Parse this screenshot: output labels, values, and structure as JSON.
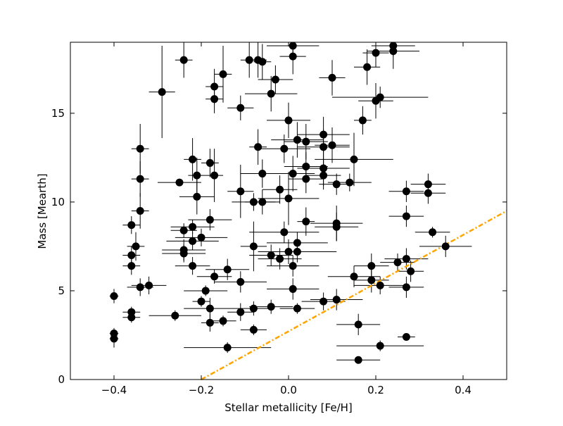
{
  "chart_data": {
    "type": "scatter",
    "title": "",
    "xlabel": "Stellar metallicity [Fe/H]",
    "ylabel": "Mass [Mearth]",
    "xlim": [
      -0.5,
      0.5
    ],
    "ylim": [
      0,
      19
    ],
    "xticks": [
      -0.4,
      -0.2,
      0.0,
      0.2,
      0.4
    ],
    "xtick_labels": [
      "−0.4",
      "−0.2",
      "0.0",
      "0.2",
      "0.4"
    ],
    "yticks": [
      0,
      5,
      10,
      15
    ],
    "ytick_labels": [
      "0",
      "5",
      "10",
      "15"
    ],
    "grid": false,
    "legend": "none",
    "colors": {
      "points": "#000000",
      "errorbars": "#000000",
      "trend": "#ffa500",
      "axes": "#000000"
    },
    "series": [
      {
        "name": "planets",
        "style": "marker-with-errorbars",
        "points": [
          [
            -0.4,
            4.7,
            0.01,
            0.4
          ],
          [
            -0.4,
            2.6,
            0.01,
            0.3
          ],
          [
            -0.4,
            2.3,
            0.01,
            0.5
          ],
          [
            -0.36,
            8.7,
            0.02,
            0.5
          ],
          [
            -0.36,
            7.0,
            0.02,
            0.5
          ],
          [
            -0.36,
            6.4,
            0.02,
            0.5
          ],
          [
            -0.36,
            3.8,
            0.02,
            0.3
          ],
          [
            -0.36,
            3.5,
            0.02,
            0.3
          ],
          [
            -0.35,
            7.5,
            0.02,
            0.8
          ],
          [
            -0.34,
            13.0,
            0.02,
            1.4
          ],
          [
            -0.34,
            11.3,
            0.02,
            1.0
          ],
          [
            -0.34,
            9.5,
            0.02,
            1.0
          ],
          [
            -0.34,
            5.2,
            0.03,
            0.5
          ],
          [
            -0.32,
            5.3,
            0.04,
            0.5
          ],
          [
            -0.29,
            16.2,
            0.03,
            2.6
          ],
          [
            -0.26,
            3.6,
            0.06,
            0.3
          ],
          [
            -0.25,
            11.1,
            0.05,
            0.2
          ],
          [
            -0.24,
            18.0,
            0.02,
            1.0
          ],
          [
            -0.24,
            8.4,
            0.03,
            0.4
          ],
          [
            -0.24,
            7.3,
            0.05,
            0.6
          ],
          [
            -0.24,
            7.1,
            0.05,
            0.5
          ],
          [
            -0.22,
            12.4,
            0.02,
            1.2
          ],
          [
            -0.22,
            8.6,
            0.05,
            0.4
          ],
          [
            -0.22,
            7.8,
            0.06,
            0.5
          ],
          [
            -0.22,
            6.4,
            0.04,
            0.5
          ],
          [
            -0.21,
            11.5,
            0.02,
            1.0
          ],
          [
            -0.21,
            10.3,
            0.04,
            1.0
          ],
          [
            -0.2,
            8.0,
            0.06,
            0.5
          ],
          [
            -0.2,
            4.4,
            0.02,
            0.3
          ],
          [
            -0.19,
            5.0,
            0.05,
            0.3
          ],
          [
            -0.18,
            12.2,
            0.02,
            0.8
          ],
          [
            -0.18,
            9.0,
            0.05,
            0.6
          ],
          [
            -0.18,
            4.0,
            0.06,
            0.6
          ],
          [
            -0.18,
            3.2,
            0.02,
            0.5
          ],
          [
            -0.17,
            16.5,
            0.02,
            1.0
          ],
          [
            -0.17,
            15.8,
            0.02,
            0.8
          ],
          [
            -0.17,
            11.5,
            0.02,
            1.5
          ],
          [
            -0.17,
            5.8,
            0.04,
            0.4
          ],
          [
            -0.15,
            17.2,
            0.02,
            1.6
          ],
          [
            -0.15,
            3.3,
            0.03,
            0.3
          ],
          [
            -0.14,
            6.2,
            0.05,
            0.6
          ],
          [
            -0.14,
            1.8,
            0.1,
            0.3
          ],
          [
            -0.11,
            15.3,
            0.03,
            0.7
          ],
          [
            -0.11,
            10.6,
            0.03,
            1.5
          ],
          [
            -0.11,
            5.5,
            0.06,
            0.6
          ],
          [
            -0.11,
            3.8,
            0.03,
            0.5
          ],
          [
            -0.09,
            18.0,
            0.02,
            1.0
          ],
          [
            -0.08,
            10.0,
            0.05,
            0.5
          ],
          [
            -0.08,
            7.5,
            0.03,
            1.4
          ],
          [
            -0.08,
            4.0,
            0.04,
            0.4
          ],
          [
            -0.08,
            2.8,
            0.03,
            0.3
          ],
          [
            -0.07,
            18.0,
            0.02,
            1.0
          ],
          [
            -0.07,
            13.1,
            0.02,
            1.0
          ],
          [
            -0.06,
            17.9,
            0.02,
            1.0
          ],
          [
            -0.06,
            11.6,
            0.05,
            0.8
          ],
          [
            -0.06,
            10.0,
            0.04,
            0.7
          ],
          [
            -0.04,
            16.1,
            0.06,
            1.0
          ],
          [
            -0.04,
            7.0,
            0.05,
            0.6
          ],
          [
            -0.04,
            4.1,
            0.05,
            0.4
          ],
          [
            -0.03,
            16.9,
            0.04,
            0.8
          ],
          [
            -0.02,
            10.7,
            0.04,
            0.8
          ],
          [
            -0.02,
            6.8,
            0.05,
            0.6
          ],
          [
            -0.01,
            13.0,
            0.06,
            0.8
          ],
          [
            -0.01,
            8.3,
            0.08,
            0.6
          ],
          [
            0.0,
            14.6,
            0.05,
            1.0
          ],
          [
            0.0,
            10.2,
            0.07,
            1.5
          ],
          [
            0.0,
            7.2,
            0.05,
            0.7
          ],
          [
            0.01,
            18.8,
            0.06,
            0.4
          ],
          [
            0.01,
            18.2,
            0.03,
            1.0
          ],
          [
            0.01,
            11.6,
            0.05,
            1.0
          ],
          [
            0.01,
            6.4,
            0.06,
            0.6
          ],
          [
            0.01,
            5.1,
            0.06,
            0.6
          ],
          [
            0.02,
            13.5,
            0.06,
            1.0
          ],
          [
            0.02,
            7.7,
            0.07,
            0.6
          ],
          [
            0.02,
            7.2,
            0.09,
            0.6
          ],
          [
            0.02,
            4.0,
            0.04,
            0.3
          ],
          [
            0.04,
            13.4,
            0.05,
            1.0
          ],
          [
            0.04,
            12.0,
            0.05,
            0.8
          ],
          [
            0.04,
            11.3,
            0.04,
            0.8
          ],
          [
            0.04,
            8.9,
            0.02,
            0.8
          ],
          [
            0.08,
            13.8,
            0.06,
            1.0
          ],
          [
            0.08,
            13.1,
            0.06,
            1.0
          ],
          [
            0.08,
            11.9,
            0.06,
            1.0
          ],
          [
            0.08,
            11.5,
            0.04,
            0.8
          ],
          [
            0.08,
            4.4,
            0.05,
            0.5
          ],
          [
            0.1,
            17.0,
            0.03,
            1.0
          ],
          [
            0.1,
            13.2,
            0.04,
            1.0
          ],
          [
            0.11,
            11.0,
            0.04,
            0.6
          ],
          [
            0.11,
            8.8,
            0.06,
            1.0
          ],
          [
            0.11,
            8.6,
            0.05,
            0.8
          ],
          [
            0.11,
            4.5,
            0.06,
            0.6
          ],
          [
            0.14,
            11.1,
            0.05,
            0.5
          ],
          [
            0.15,
            12.4,
            0.09,
            1.5
          ],
          [
            0.15,
            5.8,
            0.06,
            0.6
          ],
          [
            0.16,
            3.1,
            0.05,
            0.6
          ],
          [
            0.16,
            1.1,
            0.05,
            0.2
          ],
          [
            0.17,
            14.6,
            0.02,
            0.8
          ],
          [
            0.18,
            17.6,
            0.03,
            1.0
          ],
          [
            0.19,
            6.4,
            0.04,
            0.7
          ],
          [
            0.19,
            5.6,
            0.04,
            0.7
          ],
          [
            0.2,
            18.4,
            0.03,
            0.8
          ],
          [
            0.2,
            15.7,
            0.04,
            1.0
          ],
          [
            0.21,
            15.9,
            0.11,
            0.6
          ],
          [
            0.21,
            5.3,
            0.06,
            0.5
          ],
          [
            0.21,
            1.9,
            0.1,
            0.3
          ],
          [
            0.24,
            18.8,
            0.05,
            0.6
          ],
          [
            0.24,
            18.5,
            0.06,
            1.0
          ],
          [
            0.25,
            6.6,
            0.04,
            0.5
          ],
          [
            0.27,
            10.6,
            0.04,
            0.6
          ],
          [
            0.27,
            9.2,
            0.04,
            0.6
          ],
          [
            0.27,
            6.8,
            0.05,
            0.6
          ],
          [
            0.27,
            5.2,
            0.04,
            0.6
          ],
          [
            0.27,
            2.4,
            0.02,
            0.2
          ],
          [
            0.28,
            6.1,
            0.03,
            0.6
          ],
          [
            0.32,
            11.0,
            0.04,
            0.6
          ],
          [
            0.32,
            10.5,
            0.04,
            0.6
          ],
          [
            0.33,
            8.3,
            0.04,
            0.3
          ],
          [
            0.36,
            7.5,
            0.06,
            0.6
          ]
        ]
      },
      {
        "name": "trend",
        "style": "dash-dot-line",
        "x": [
          -0.2,
          0.5
        ],
        "y": [
          0.0,
          9.5
        ]
      }
    ]
  }
}
